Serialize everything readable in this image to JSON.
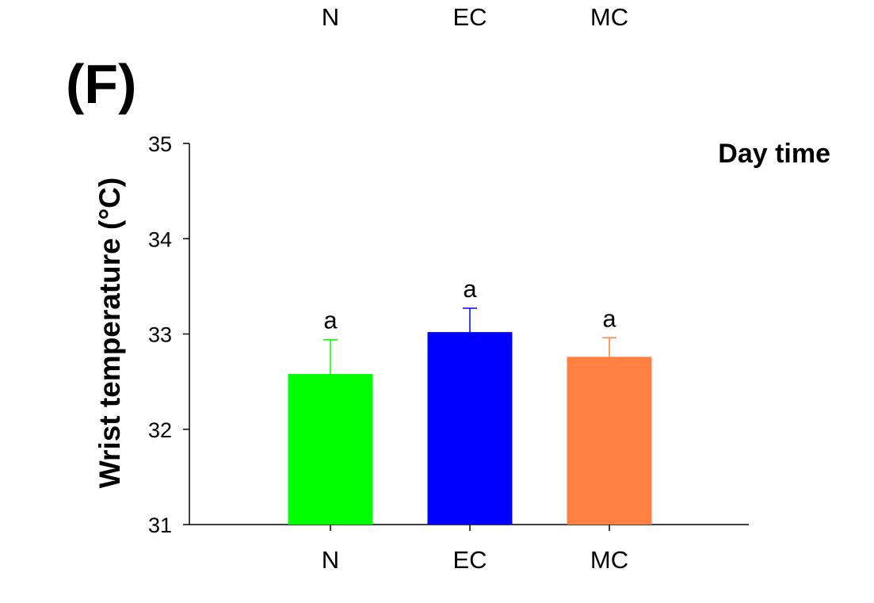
{
  "panel_label": "(F)",
  "top_labels": [
    "N",
    "EC",
    "MC"
  ],
  "chart_data": {
    "type": "bar",
    "annotation": "Day time",
    "ylabel": "Wrist temperature (°C)",
    "xlabel": "",
    "ylim": [
      31,
      35
    ],
    "yticks": [
      31,
      32,
      33,
      34,
      35
    ],
    "categories": [
      "N",
      "EC",
      "MC"
    ],
    "values": [
      32.58,
      33.02,
      32.76
    ],
    "errors": [
      0.36,
      0.25,
      0.2
    ],
    "significance": [
      "a",
      "a",
      "a"
    ],
    "colors": [
      "#00ff00",
      "#0000ff",
      "#ff8040"
    ],
    "grid": false
  }
}
